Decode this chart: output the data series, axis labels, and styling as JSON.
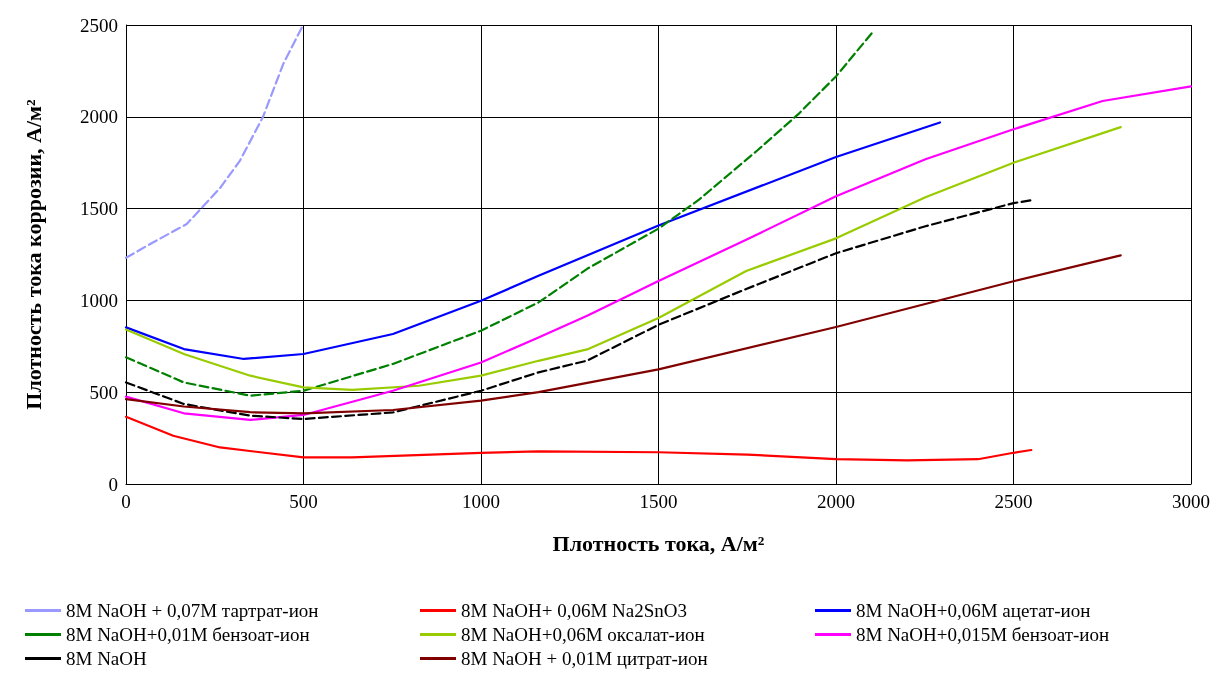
{
  "chart_data": {
    "type": "line",
    "xlabel": "Плотность тока, А/м²",
    "ylabel": "Плотность тока коррозии, А/м²",
    "xlim": [
      0,
      3000
    ],
    "ylim": [
      0,
      2500
    ],
    "xticks": [
      0,
      500,
      1000,
      1500,
      2000,
      2500,
      3000
    ],
    "yticks": [
      0,
      500,
      1000,
      1500,
      2000,
      2500
    ],
    "grid": true,
    "legend": "bottom",
    "marker": "none",
    "series": [
      {
        "name": "8M NaOH + 0,07M тартрат-ион",
        "color": "#9999ff",
        "line_style": "dashed",
        "x": [
          0,
          68,
          171,
          265,
          321,
          386,
          443,
          499
        ],
        "values": [
          1232,
          1307,
          1416,
          1612,
          1761,
          2000,
          2288,
          2500
        ]
      },
      {
        "name": "8M NaOH+ 0,06M Na2SnO3",
        "color": "#ff0000",
        "line_style": "solid",
        "x": [
          0,
          133,
          265,
          500,
          637,
          1000,
          1162,
          1500,
          1750,
          2000,
          2200,
          2400,
          2500,
          2550
        ],
        "values": [
          366,
          263,
          199,
          145,
          145,
          170,
          178,
          173,
          160,
          136,
          129,
          135,
          170,
          185
        ]
      },
      {
        "name": "8M NaOH+0,06M ацетат-ион",
        "color": "#0000ff",
        "line_style": "solid",
        "x": [
          0,
          163,
          332,
          500,
          752,
          1000,
          1162,
          1500,
          2000,
          2293
        ],
        "values": [
          853,
          735,
          681,
          708,
          817,
          998,
          1134,
          1408,
          1781,
          1969
        ]
      },
      {
        "name": "8M NaOH+0,01M бензоат-ион",
        "color": "#008000",
        "line_style": "dashed",
        "x": [
          0,
          163,
          350,
          500,
          752,
          1000,
          1162,
          1299,
          1500,
          1615,
          1779,
          1893,
          2000,
          2101
        ],
        "values": [
          690,
          553,
          481,
          508,
          654,
          835,
          989,
          1172,
          1391,
          1550,
          1818,
          2013,
          2220,
          2456
        ]
      },
      {
        "name": "8M NaOH+0,06M оксалат-ион",
        "color": "#99cc00",
        "line_style": "solid",
        "x": [
          0,
          163,
          350,
          500,
          637,
          825,
          1000,
          1162,
          1299,
          1500,
          1747,
          2000,
          2252,
          2500,
          2802
        ],
        "values": [
          841,
          708,
          590,
          526,
          513,
          535,
          590,
          671,
          733,
          904,
          1160,
          1338,
          1562,
          1750,
          1944
        ]
      },
      {
        "name": "8M NaOH+0,015M бензоат-ион",
        "color": "#ff00ff",
        "line_style": "solid",
        "x": [
          0,
          163,
          350,
          500,
          752,
          1000,
          1162,
          1299,
          1500,
          1747,
          2000,
          2252,
          2500,
          2751,
          3000
        ],
        "values": [
          476,
          385,
          349,
          376,
          508,
          662,
          798,
          916,
          1106,
          1330,
          1567,
          1769,
          1932,
          2086,
          2166
        ]
      },
      {
        "name": "8M NaOH",
        "color": "#000000",
        "line_style": "dashed",
        "x": [
          0,
          163,
          350,
          500,
          752,
          1000,
          1162,
          1299,
          1500,
          1747,
          2000,
          2252,
          2500,
          2549
        ],
        "values": [
          553,
          436,
          372,
          354,
          390,
          508,
          608,
          672,
          867,
          1062,
          1257,
          1404,
          1530,
          1545
        ]
      },
      {
        "name": "8M NaOH + 0,01M цитрат-ион",
        "color": "#800000",
        "line_style": "solid",
        "x": [
          0,
          163,
          350,
          500,
          752,
          1000,
          1162,
          1500,
          2000,
          2500,
          2802
        ],
        "values": [
          462,
          422,
          391,
          385,
          403,
          454,
          500,
          624,
          855,
          1104,
          1245
        ]
      }
    ]
  }
}
